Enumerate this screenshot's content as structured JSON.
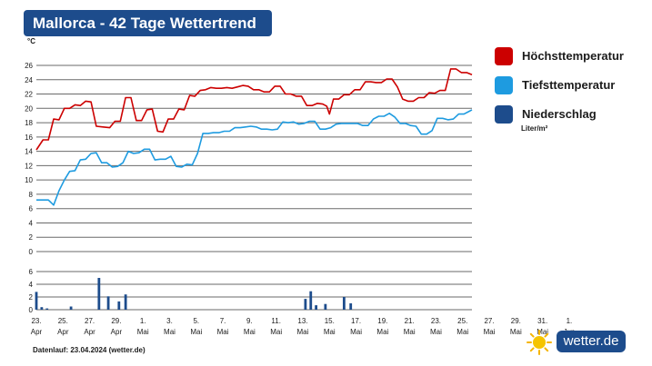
{
  "title": "Mallorca - 42 Tage Wettertrend",
  "legend": {
    "max_label": "Höchsttemperatur",
    "min_label": "Tiefsttemperatur",
    "precip_label": "Niederschlag",
    "precip_unit": "Liter/m²"
  },
  "footer": "Datenlauf: 23.04.2024 (wetter.de)",
  "brand": "wetter.de",
  "colors": {
    "max": "#cc0000",
    "min": "#1e9be0",
    "precip": "#1d4c8c",
    "title_bg": "#1d4c8c"
  },
  "icons": {
    "sun": "sun-icon"
  },
  "chart_data": {
    "type": "line",
    "y_unit": "°C",
    "temp_ylim": [
      0,
      26
    ],
    "temp_ticks": [
      "0",
      "2",
      "4",
      "6",
      "8",
      "10",
      "12",
      "14",
      "16",
      "18",
      "20",
      "22",
      "24",
      "26"
    ],
    "precip_ylim": [
      0,
      6
    ],
    "precip_ticks": [
      "0",
      "2",
      "4",
      "6"
    ],
    "x_ticks": [
      {
        "day": "23.",
        "month": "Apr"
      },
      {
        "day": "25.",
        "month": "Apr"
      },
      {
        "day": "27.",
        "month": "Apr"
      },
      {
        "day": "29.",
        "month": "Apr"
      },
      {
        "day": "1.",
        "month": "Mai"
      },
      {
        "day": "3.",
        "month": "Mai"
      },
      {
        "day": "5.",
        "month": "Mai"
      },
      {
        "day": "7.",
        "month": "Mai"
      },
      {
        "day": "9.",
        "month": "Mai"
      },
      {
        "day": "11.",
        "month": "Mai"
      },
      {
        "day": "13.",
        "month": "Mai"
      },
      {
        "day": "15.",
        "month": "Mai"
      },
      {
        "day": "17.",
        "month": "Mai"
      },
      {
        "day": "19.",
        "month": "Mai"
      },
      {
        "day": "21.",
        "month": "Mai"
      },
      {
        "day": "23.",
        "month": "Mai"
      },
      {
        "day": "25.",
        "month": "Mai"
      },
      {
        "day": "27.",
        "month": "Mai"
      },
      {
        "day": "29.",
        "month": "Mai"
      },
      {
        "day": "31.",
        "month": "Mai"
      },
      {
        "day": "1.",
        "month": "Jun"
      }
    ],
    "series": [
      {
        "name": "Höchsttemperatur",
        "values": [
          [
            0,
            14.2
          ],
          [
            0.5,
            15.6
          ],
          [
            0.9,
            15.6
          ],
          [
            1.3,
            18.5
          ],
          [
            1.7,
            18.4
          ],
          [
            2.1,
            20.0
          ],
          [
            2.5,
            20.0
          ],
          [
            2.9,
            20.5
          ],
          [
            3.3,
            20.4
          ],
          [
            3.7,
            21.0
          ],
          [
            4.1,
            20.9
          ],
          [
            4.5,
            17.5
          ],
          [
            5.0,
            17.4
          ],
          [
            5.5,
            17.3
          ],
          [
            5.9,
            18.2
          ],
          [
            6.3,
            18.2
          ],
          [
            6.7,
            21.5
          ],
          [
            7.1,
            21.5
          ],
          [
            7.5,
            18.3
          ],
          [
            7.9,
            18.3
          ],
          [
            8.3,
            19.8
          ],
          [
            8.7,
            19.9
          ],
          [
            9.1,
            16.8
          ],
          [
            9.5,
            16.7
          ],
          [
            9.9,
            18.5
          ],
          [
            10.3,
            18.5
          ],
          [
            10.7,
            19.9
          ],
          [
            11.1,
            19.8
          ],
          [
            11.5,
            21.8
          ],
          [
            11.9,
            21.7
          ],
          [
            12.3,
            22.5
          ],
          [
            12.7,
            22.6
          ],
          [
            13.1,
            22.9
          ],
          [
            13.5,
            22.8
          ],
          [
            13.9,
            22.8
          ],
          [
            14.3,
            22.9
          ],
          [
            14.7,
            22.8
          ],
          [
            15.1,
            23.0
          ],
          [
            15.5,
            23.2
          ],
          [
            15.9,
            23.1
          ],
          [
            16.3,
            22.6
          ],
          [
            16.7,
            22.6
          ],
          [
            17.1,
            22.3
          ],
          [
            17.5,
            22.3
          ],
          [
            17.9,
            23.1
          ],
          [
            18.3,
            23.1
          ],
          [
            18.7,
            22.0
          ],
          [
            19.1,
            22.0
          ],
          [
            19.5,
            21.7
          ],
          [
            19.9,
            21.7
          ],
          [
            20.3,
            20.4
          ],
          [
            20.7,
            20.4
          ],
          [
            21.1,
            20.7
          ],
          [
            21.5,
            20.6
          ],
          [
            21.8,
            20.3
          ],
          [
            22.0,
            19.2
          ],
          [
            22.3,
            21.3
          ],
          [
            22.7,
            21.3
          ],
          [
            23.1,
            21.9
          ],
          [
            23.5,
            21.9
          ],
          [
            23.9,
            22.6
          ],
          [
            24.3,
            22.6
          ],
          [
            24.7,
            23.7
          ],
          [
            25.1,
            23.7
          ],
          [
            25.5,
            23.6
          ],
          [
            25.9,
            23.6
          ],
          [
            26.3,
            24.1
          ],
          [
            26.7,
            24.1
          ],
          [
            27.1,
            23.0
          ],
          [
            27.5,
            21.3
          ],
          [
            27.9,
            21.0
          ],
          [
            28.3,
            21.0
          ],
          [
            28.7,
            21.5
          ],
          [
            29.1,
            21.5
          ],
          [
            29.5,
            22.2
          ],
          [
            29.9,
            22.1
          ],
          [
            30.3,
            22.5
          ],
          [
            30.7,
            22.5
          ],
          [
            31.1,
            25.5
          ],
          [
            31.5,
            25.5
          ],
          [
            31.9,
            25.0
          ],
          [
            32.3,
            25.0
          ],
          [
            32.7,
            24.7
          ]
        ]
      },
      {
        "name": "Tiefsttemperatur",
        "values": [
          [
            0,
            7.2
          ],
          [
            0.4,
            7.2
          ],
          [
            0.9,
            7.2
          ],
          [
            1.3,
            6.5
          ],
          [
            1.7,
            8.5
          ],
          [
            2.1,
            10.0
          ],
          [
            2.5,
            11.2
          ],
          [
            2.9,
            11.3
          ],
          [
            3.3,
            12.8
          ],
          [
            3.7,
            12.9
          ],
          [
            4.1,
            13.7
          ],
          [
            4.5,
            13.8
          ],
          [
            4.9,
            12.4
          ],
          [
            5.3,
            12.4
          ],
          [
            5.7,
            11.8
          ],
          [
            6.1,
            11.9
          ],
          [
            6.5,
            12.4
          ],
          [
            6.9,
            14.0
          ],
          [
            7.3,
            13.7
          ],
          [
            7.7,
            13.8
          ],
          [
            8.1,
            14.3
          ],
          [
            8.5,
            14.3
          ],
          [
            8.9,
            12.8
          ],
          [
            9.3,
            12.9
          ],
          [
            9.7,
            12.9
          ],
          [
            10.1,
            13.3
          ],
          [
            10.5,
            11.9
          ],
          [
            10.9,
            11.8
          ],
          [
            11.3,
            12.2
          ],
          [
            11.7,
            12.1
          ],
          [
            12.1,
            13.7
          ],
          [
            12.5,
            16.5
          ],
          [
            12.9,
            16.5
          ],
          [
            13.3,
            16.6
          ],
          [
            13.7,
            16.6
          ],
          [
            14.1,
            16.8
          ],
          [
            14.5,
            16.8
          ],
          [
            14.9,
            17.3
          ],
          [
            15.3,
            17.3
          ],
          [
            15.7,
            17.4
          ],
          [
            16.1,
            17.5
          ],
          [
            16.5,
            17.4
          ],
          [
            16.9,
            17.1
          ],
          [
            17.3,
            17.1
          ],
          [
            17.7,
            17.0
          ],
          [
            18.1,
            17.1
          ],
          [
            18.5,
            18.1
          ],
          [
            18.9,
            18.0
          ],
          [
            19.3,
            18.1
          ],
          [
            19.7,
            17.8
          ],
          [
            20.1,
            17.9
          ],
          [
            20.5,
            18.2
          ],
          [
            20.9,
            18.2
          ],
          [
            21.3,
            17.1
          ],
          [
            21.7,
            17.1
          ],
          [
            22.1,
            17.3
          ],
          [
            22.5,
            17.8
          ],
          [
            22.9,
            17.9
          ],
          [
            23.3,
            17.9
          ],
          [
            23.7,
            17.9
          ],
          [
            24.1,
            17.9
          ],
          [
            24.5,
            17.6
          ],
          [
            24.9,
            17.6
          ],
          [
            25.3,
            18.5
          ],
          [
            25.7,
            18.9
          ],
          [
            26.1,
            18.9
          ],
          [
            26.5,
            19.3
          ],
          [
            26.9,
            18.8
          ],
          [
            27.3,
            17.9
          ],
          [
            27.7,
            17.9
          ],
          [
            28.1,
            17.6
          ],
          [
            28.5,
            17.5
          ],
          [
            28.9,
            16.4
          ],
          [
            29.3,
            16.4
          ],
          [
            29.7,
            16.9
          ],
          [
            30.1,
            18.6
          ],
          [
            30.5,
            18.6
          ],
          [
            30.9,
            18.4
          ],
          [
            31.3,
            18.5
          ],
          [
            31.7,
            19.2
          ],
          [
            32.1,
            19.2
          ],
          [
            32.5,
            19.6
          ],
          [
            32.7,
            19.8
          ]
        ]
      },
      {
        "name": "Niederschlag",
        "values": [
          [
            0,
            2.8
          ],
          [
            0.4,
            0.4
          ],
          [
            0.8,
            0.2
          ],
          [
            2.6,
            0.5
          ],
          [
            4.7,
            5.0
          ],
          [
            5.4,
            2.1
          ],
          [
            6.2,
            1.3
          ],
          [
            6.7,
            2.4
          ],
          [
            20.2,
            1.7
          ],
          [
            20.6,
            2.9
          ],
          [
            21.0,
            0.7
          ],
          [
            21.7,
            0.9
          ],
          [
            23.1,
            2.0
          ],
          [
            23.6,
            1.0
          ]
        ]
      }
    ]
  }
}
